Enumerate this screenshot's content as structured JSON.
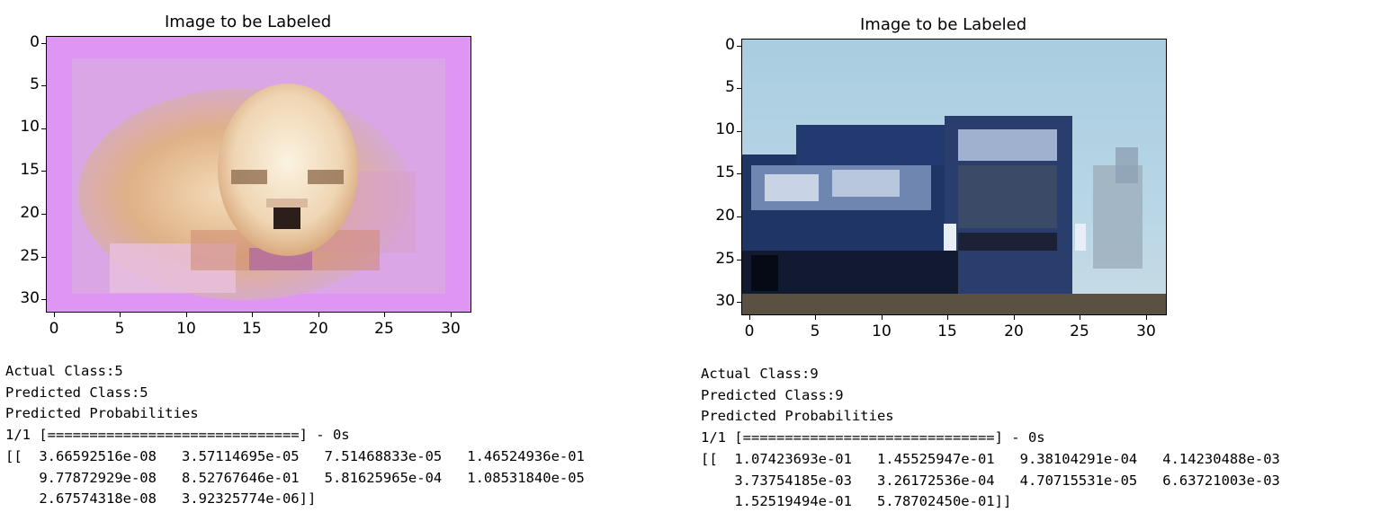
{
  "panels": [
    {
      "title": "Image to be Labeled",
      "image": "puppy",
      "yticks": [
        "0",
        "5",
        "10",
        "15",
        "20",
        "25",
        "30"
      ],
      "xticks": [
        "0",
        "5",
        "10",
        "15",
        "20",
        "25",
        "30"
      ],
      "output": {
        "actual": "Actual Class:5",
        "predicted": "Predicted Class:5",
        "probs_header": "Predicted Probabilities",
        "progress": "1/1 [==============================] - 0s",
        "row1": "[[  3.66592516e-08   3.57114695e-05   7.51468833e-05   1.46524936e-01",
        "row2": "    9.77872929e-08   8.52767646e-01   5.81625965e-04   1.08531840e-05",
        "row3": "    2.67574318e-08   3.92325774e-06]]"
      }
    },
    {
      "title": "Image to be Labeled",
      "image": "truck",
      "yticks": [
        "0",
        "5",
        "10",
        "15",
        "20",
        "25",
        "30"
      ],
      "xticks": [
        "0",
        "5",
        "10",
        "15",
        "20",
        "25",
        "30"
      ],
      "output": {
        "actual": "Actual Class:9",
        "predicted": "Predicted Class:9",
        "probs_header": "Predicted Probabilities",
        "progress": "1/1 [==============================] - 0s",
        "row1": "[[  1.07423693e-01   1.45525947e-01   9.38104291e-04   4.14230488e-03",
        "row2": "    3.73754185e-03   3.26172536e-04   4.70715531e-05   6.63721003e-03",
        "row3": "    1.52519494e-01   5.78702450e-01]]"
      }
    }
  ]
}
